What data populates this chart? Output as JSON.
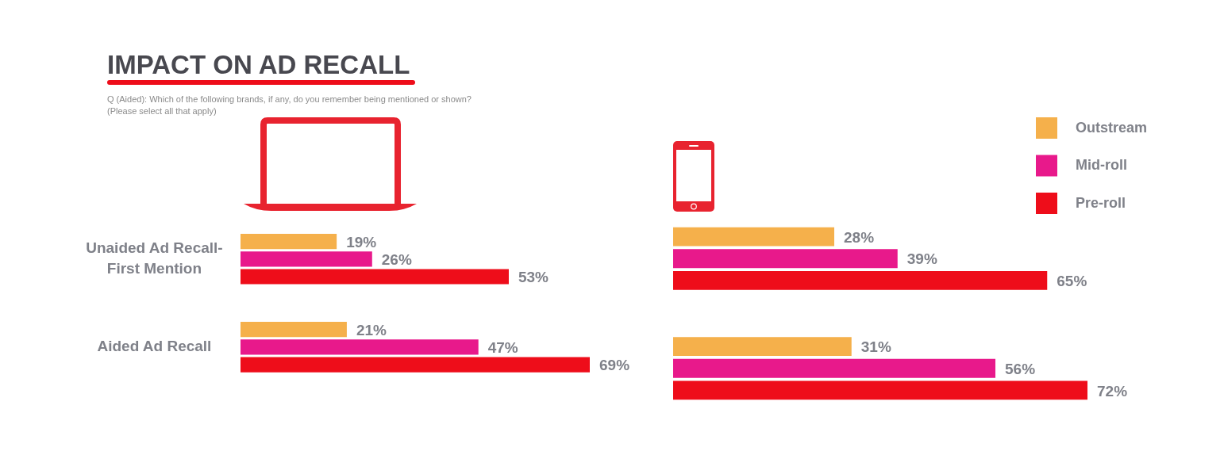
{
  "chart_data": [
    {
      "type": "bar",
      "orientation": "horizontal",
      "title": "IMPACT ON AD RECALL",
      "subtitle": "Q (Aided): Which of the following brands, if any, do you remember being mentioned or shown?\n(Please select all that apply)",
      "categories": [
        "Unaided Ad Recall-\nFirst Mention",
        "Aided Ad Recall"
      ],
      "tick_labels": "y",
      "series": [
        {
          "color": "#f5b04b",
          "values": [
            19,
            21
          ],
          "value_labels": [
            "19%",
            "21%"
          ]
        },
        {
          "color": "#e8198b",
          "values": [
            26,
            47
          ],
          "value_labels": [
            "26%",
            "47%"
          ]
        },
        {
          "color": "#ee0d1a",
          "values": [
            53,
            69
          ],
          "value_labels": [
            "53%",
            "69%"
          ]
        }
      ]
    },
    {
      "type": "bar",
      "orientation": "horizontal",
      "categories": [
        null,
        null
      ],
      "tick_labels": false,
      "legend": "top right",
      "series": [
        {
          "name": "Outstream",
          "color": "#f5b04b",
          "values": [
            28,
            31
          ],
          "value_labels": [
            "28%",
            "31%"
          ]
        },
        {
          "name": "Mid-roll",
          "color": "#e8198b",
          "values": [
            39,
            56
          ],
          "value_labels": [
            "39%",
            "56%"
          ]
        },
        {
          "name": "Pre-roll",
          "color": "#ee0d1a",
          "values": [
            65,
            72
          ],
          "value_labels": [
            "65%",
            "72%"
          ]
        }
      ]
    }
  ]
}
